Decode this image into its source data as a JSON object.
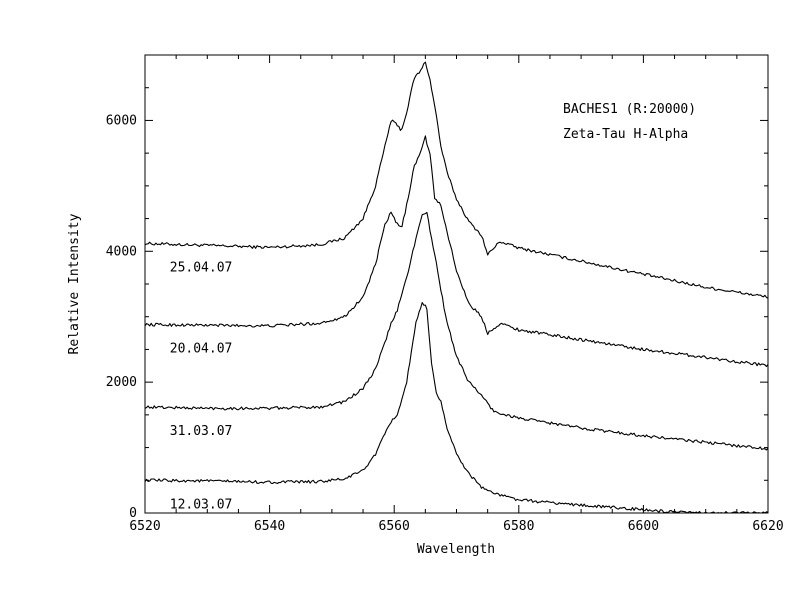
{
  "chart_data": {
    "type": "line",
    "xlabel": "Wavelength",
    "ylabel": "Relative Intensity",
    "annotations": [
      "BACHES1 (R:20000)",
      "Zeta-Tau H-Alpha"
    ],
    "xlim": [
      6520,
      6620
    ],
    "ylim": [
      0,
      7000
    ],
    "x_ticks": [
      6520,
      6540,
      6560,
      6580,
      6600,
      6620
    ],
    "y_ticks": [
      0,
      2000,
      4000,
      6000
    ],
    "grid": false,
    "series": [
      {
        "name": "25.04.07",
        "x": [
          6520,
          6530,
          6540,
          6548,
          6552,
          6555,
          6557,
          6558.5,
          6559.5,
          6560.2,
          6561.2,
          6562.2,
          6563.2,
          6564.2,
          6565,
          6565.8,
          6566.8,
          6567.5,
          6568.5,
          6570,
          6572,
          6574,
          6575,
          6577,
          6580,
          6590,
          6600,
          6610,
          6620
        ],
        "values": [
          4120,
          4090,
          4060,
          4100,
          4200,
          4500,
          5000,
          5600,
          6000,
          5950,
          5850,
          6200,
          6650,
          6750,
          6900,
          6600,
          6050,
          5600,
          5200,
          4800,
          4450,
          4250,
          3950,
          4150,
          4050,
          3850,
          3650,
          3450,
          3300
        ]
      },
      {
        "name": "20.04.07",
        "x": [
          6520,
          6530,
          6540,
          6548,
          6552,
          6555,
          6557,
          6558.5,
          6559.5,
          6560.2,
          6561.2,
          6562.2,
          6563.2,
          6564.2,
          6565,
          6565.8,
          6566.5,
          6567.3,
          6568.5,
          6570,
          6572,
          6574,
          6575,
          6577,
          6580,
          6590,
          6600,
          6610,
          6620
        ],
        "values": [
          2880,
          2870,
          2860,
          2900,
          3000,
          3300,
          3800,
          4400,
          4600,
          4450,
          4350,
          4800,
          5300,
          5500,
          5750,
          5450,
          4800,
          4750,
          4300,
          3700,
          3200,
          3000,
          2750,
          2900,
          2800,
          2650,
          2500,
          2380,
          2250
        ]
      },
      {
        "name": "31.03.07",
        "x": [
          6520,
          6530,
          6540,
          6548,
          6552,
          6555,
          6557,
          6558.5,
          6559.5,
          6560.5,
          6562,
          6563.5,
          6564.5,
          6565.2,
          6566,
          6566.8,
          6567.5,
          6568.5,
          6570,
          6572,
          6574,
          6576,
          6580,
          6590,
          6600,
          6610,
          6620
        ],
        "values": [
          1620,
          1600,
          1600,
          1620,
          1700,
          1900,
          2200,
          2600,
          2900,
          3100,
          3600,
          4200,
          4550,
          4600,
          4200,
          3800,
          3400,
          2900,
          2400,
          2000,
          1800,
          1550,
          1450,
          1300,
          1180,
          1080,
          980
        ]
      },
      {
        "name": "12.03.07",
        "x": [
          6520,
          6530,
          6540,
          6548,
          6552,
          6555,
          6557,
          6558.5,
          6559.5,
          6560.5,
          6562,
          6563.5,
          6564.5,
          6565.2,
          6566,
          6566.8,
          6567.5,
          6568.5,
          6570,
          6572,
          6574,
          6576,
          6580,
          6590,
          6600,
          6605,
          6610,
          6620
        ],
        "values": [
          500,
          490,
          470,
          480,
          520,
          650,
          900,
          1200,
          1400,
          1500,
          2000,
          2900,
          3200,
          3150,
          2300,
          1800,
          1700,
          1300,
          900,
          600,
          400,
          300,
          200,
          120,
          50,
          10,
          0,
          0
        ]
      }
    ]
  }
}
